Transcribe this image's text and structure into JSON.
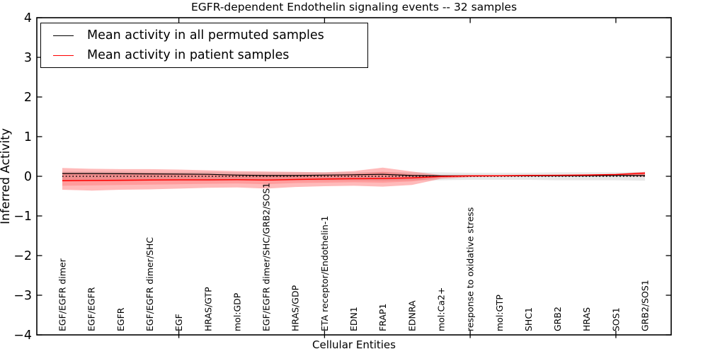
{
  "chart_data": {
    "type": "line",
    "title": "EGFR-dependent Endothelin signaling events -- 32 samples",
    "xlabel": "Cellular Entities",
    "ylabel": "Inferred Activity",
    "ylim": [
      -4,
      4
    ],
    "yticks": [
      -4,
      -3,
      -2,
      -1,
      0,
      1,
      2,
      3,
      4
    ],
    "x_major_tick_indices": [
      4,
      9,
      14,
      19
    ],
    "grid": false,
    "legend_position": "upper left",
    "categories": [
      "EGF/EGFR dimer",
      "EGF/EGFR",
      "EGFR",
      "EGF/EGFR dimer/SHC",
      "EGF",
      "HRAS/GTP",
      "mol:GDP",
      "EGF/EGFR dimer/SHC/GRB2/SOS1",
      "HRAS/GDP",
      "ETA receptor/Endothelin-1",
      "EDN1",
      "FRAP1",
      "EDNRA",
      "mol:Ca2+",
      "response to oxidative stress",
      "mol:GTP",
      "SHC1",
      "GRB2",
      "HRAS",
      "SOS1",
      "GRB2/SOS1"
    ],
    "series": [
      {
        "name": "Mean activity in all permuted samples",
        "color": "#000000",
        "line_style": "solid",
        "line_width": 1.2,
        "values": [
          0.07,
          0.07,
          0.065,
          0.06,
          0.055,
          0.05,
          0.03,
          0.02,
          0.02,
          0.03,
          0.04,
          0.05,
          0.02,
          0.01,
          0.01,
          0.01,
          0.01,
          0.01,
          0.015,
          0.02,
          0.02
        ]
      },
      {
        "name": "Mean activity in patient samples",
        "color": "#ff0000",
        "line_style": "solid",
        "line_width": 1.5,
        "values": [
          -0.11,
          -0.105,
          -0.1,
          -0.095,
          -0.09,
          -0.09,
          -0.085,
          -0.095,
          -0.08,
          -0.07,
          -0.06,
          -0.055,
          -0.04,
          -0.005,
          0.01,
          0.015,
          0.02,
          0.025,
          0.03,
          0.045,
          0.08
        ]
      },
      {
        "name": "zero baseline",
        "color": "#000000",
        "line_style": "dotted",
        "line_width": 1.5,
        "values": [
          0,
          0,
          0,
          0,
          0,
          0,
          0,
          0,
          0,
          0,
          0,
          0,
          0,
          0,
          0,
          0,
          0,
          0,
          0,
          0,
          0
        ]
      }
    ],
    "bands": [
      {
        "id": "permuted-samples-range",
        "color": "rgba(0,0,0,0.09)",
        "upper": [
          0.12,
          0.12,
          0.12,
          0.11,
          0.11,
          0.11,
          0.1,
          0.1,
          0.1,
          0.1,
          0.1,
          0.11,
          0.1,
          0.1,
          0.09,
          0.09,
          0.09,
          0.1,
          0.1,
          0.1,
          0.11
        ],
        "lower": [
          -0.12,
          -0.12,
          -0.12,
          -0.11,
          -0.11,
          -0.11,
          -0.1,
          -0.1,
          -0.1,
          -0.1,
          -0.1,
          -0.11,
          -0.1,
          -0.1,
          -0.09,
          -0.09,
          -0.09,
          -0.1,
          -0.1,
          -0.1,
          -0.11
        ]
      },
      {
        "id": "patient-samples-range-outer",
        "color": "rgba(255,0,0,0.27)",
        "upper": [
          0.21,
          0.19,
          0.18,
          0.18,
          0.17,
          0.15,
          0.13,
          0.12,
          0.11,
          0.1,
          0.13,
          0.22,
          0.12,
          0.03,
          0.03,
          0.03,
          0.04,
          0.04,
          0.05,
          0.06,
          0.11
        ],
        "lower": [
          -0.34,
          -0.36,
          -0.34,
          -0.33,
          -0.31,
          -0.29,
          -0.28,
          -0.31,
          -0.27,
          -0.25,
          -0.24,
          -0.26,
          -0.22,
          -0.06,
          -0.02,
          -0.01,
          0.0,
          0.0,
          0.0,
          0.01,
          -0.01
        ]
      },
      {
        "id": "patient-samples-range-inner",
        "color": "rgba(255,0,0,0.16)",
        "upper": [
          0.09,
          0.08,
          0.08,
          0.08,
          0.07,
          0.06,
          0.05,
          0.04,
          0.04,
          0.04,
          0.06,
          0.11,
          0.05,
          0.01,
          0.02,
          0.02,
          0.03,
          0.03,
          0.04,
          0.05,
          0.09
        ],
        "lower": [
          -0.24,
          -0.23,
          -0.22,
          -0.21,
          -0.2,
          -0.19,
          -0.18,
          -0.2,
          -0.17,
          -0.16,
          -0.15,
          -0.16,
          -0.13,
          -0.03,
          -0.01,
          0.0,
          0.01,
          0.01,
          0.02,
          0.02,
          0.04
        ]
      }
    ]
  }
}
